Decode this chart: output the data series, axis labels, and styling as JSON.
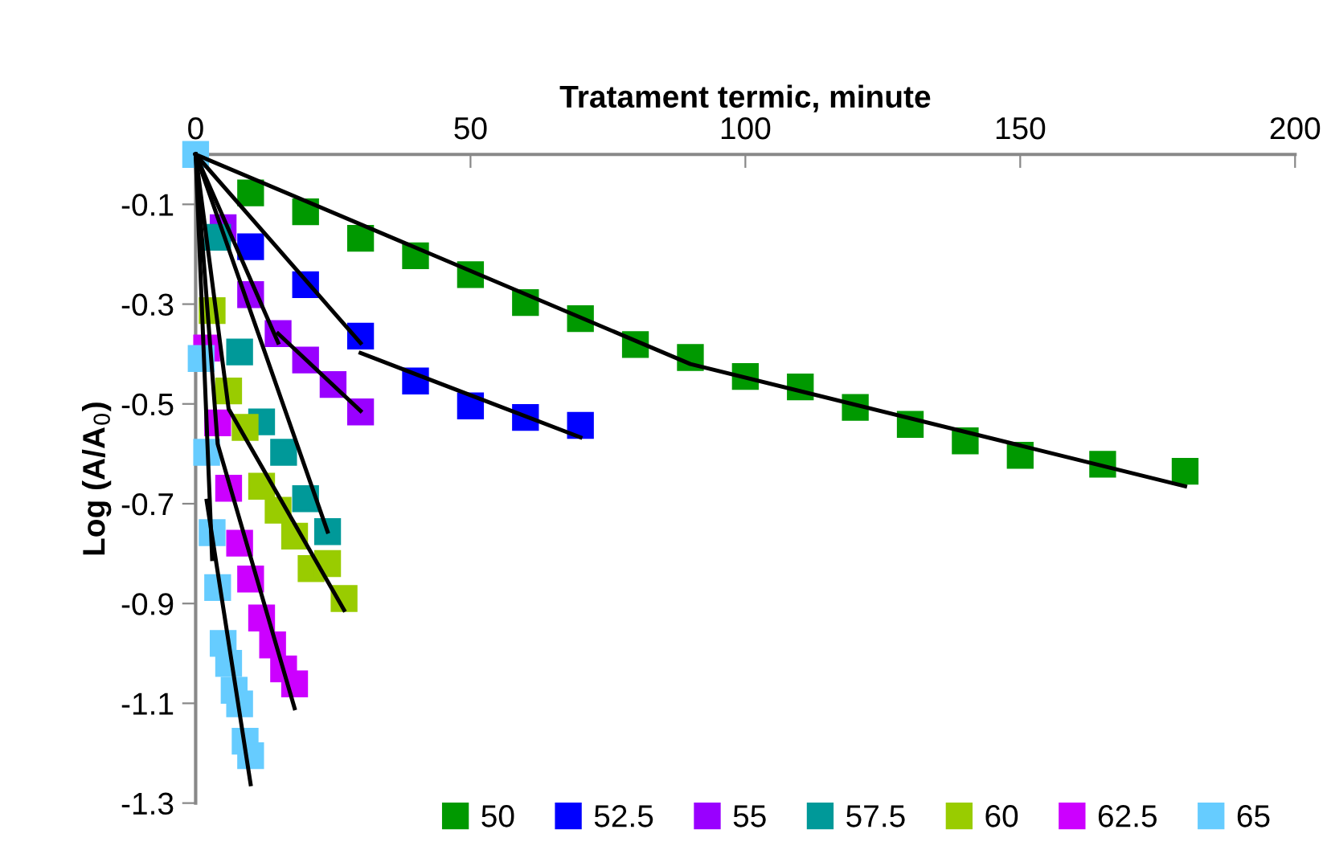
{
  "chart_data": {
    "type": "scatter",
    "xlabel": "Tratament termic, minute",
    "ylabel": "Log (A/A$_{0}$)",
    "xlim": [
      0,
      200
    ],
    "xticks": [
      0,
      50,
      100,
      150,
      200
    ],
    "ylim": [
      -1.3,
      0
    ],
    "yticks": [
      -0.1,
      -0.3,
      -0.5,
      -0.7,
      -0.9,
      -1.1,
      -1.3
    ],
    "grid": false,
    "legend": "bottom",
    "marker": "square",
    "series": [
      {
        "name": "50",
        "color": "#009900",
        "x": [
          10,
          20,
          30,
          40,
          50,
          60,
          70,
          80,
          90,
          100,
          110,
          120,
          130,
          140,
          150,
          165,
          180
        ],
        "values": [
          -0.077,
          -0.115,
          -0.168,
          -0.203,
          -0.241,
          -0.297,
          -0.329,
          -0.381,
          -0.407,
          -0.445,
          -0.466,
          -0.507,
          -0.541,
          -0.574,
          -0.603,
          -0.621,
          -0.635
        ]
      },
      {
        "name": "52.5",
        "color": "#0000ff",
        "x": [
          10,
          20,
          30,
          40,
          50,
          60,
          70
        ],
        "values": [
          -0.185,
          -0.261,
          -0.364,
          -0.454,
          -0.504,
          -0.527,
          -0.543
        ]
      },
      {
        "name": "55",
        "color": "#9900ff",
        "x": [
          5,
          10,
          15,
          20,
          25,
          30
        ],
        "values": [
          -0.147,
          -0.281,
          -0.359,
          -0.412,
          -0.461,
          -0.516
        ]
      },
      {
        "name": "57.5",
        "color": "#009999",
        "x": [
          4,
          8,
          12,
          16,
          20,
          24
        ],
        "values": [
          -0.166,
          -0.396,
          -0.536,
          -0.597,
          -0.69,
          -0.756
        ]
      },
      {
        "name": "60",
        "color": "#99cc00",
        "x": [
          3,
          6,
          9,
          12,
          15,
          18,
          21,
          24,
          27
        ],
        "values": [
          -0.313,
          -0.474,
          -0.547,
          -0.665,
          -0.713,
          -0.765,
          -0.83,
          -0.82,
          -0.89
        ]
      },
      {
        "name": "62.5",
        "color": "#cc00ff",
        "x": [
          2,
          4,
          6,
          8,
          10,
          12,
          14,
          16,
          18
        ],
        "values": [
          -0.388,
          -0.538,
          -0.669,
          -0.779,
          -0.851,
          -0.929,
          -0.983,
          -1.031,
          -1.061
        ]
      },
      {
        "name": "65",
        "color": "#66ccff",
        "x": [
          0,
          1,
          2,
          3,
          4,
          5,
          6,
          7,
          8,
          9,
          10
        ],
        "values": [
          0,
          -0.409,
          -0.597,
          -0.758,
          -0.868,
          -0.98,
          -1.02,
          -1.074,
          -1.101,
          -1.176,
          -1.205
        ]
      },
      {
        "type": "line",
        "color": "#000000",
        "marker": "none",
        "x": [
          0,
          90,
          180
        ],
        "values": [
          0,
          -0.42,
          -0.665
        ]
      },
      {
        "type": "line",
        "color": "#000000",
        "marker": "none",
        "x": [
          0,
          30
        ],
        "values": [
          0,
          -0.378
        ]
      },
      {
        "type": "line",
        "color": "#000000",
        "marker": "none",
        "x": [
          30,
          70
        ],
        "values": [
          -0.398,
          -0.567
        ]
      },
      {
        "type": "line",
        "color": "#000000",
        "marker": "none",
        "x": [
          0,
          15
        ],
        "values": [
          0,
          -0.377
        ]
      },
      {
        "type": "line",
        "color": "#000000",
        "marker": "none",
        "x": [
          15,
          30
        ],
        "values": [
          -0.359,
          -0.514
        ]
      },
      {
        "type": "line",
        "color": "#000000",
        "marker": "none",
        "x": [
          0,
          24
        ],
        "values": [
          0,
          -0.756
        ]
      },
      {
        "type": "line",
        "color": "#000000",
        "marker": "none",
        "x": [
          0,
          6,
          27
        ],
        "values": [
          0,
          -0.51,
          -0.913
        ]
      },
      {
        "type": "line",
        "color": "#000000",
        "marker": "none",
        "x": [
          0,
          4,
          18
        ],
        "values": [
          0,
          -0.58,
          -1.11
        ]
      },
      {
        "type": "line",
        "color": "#000000",
        "marker": "none",
        "x": [
          0,
          3
        ],
        "values": [
          0,
          -0.811
        ]
      },
      {
        "type": "line",
        "color": "#000000",
        "marker": "none",
        "x": [
          2,
          10
        ],
        "values": [
          -0.694,
          -1.262
        ]
      }
    ]
  }
}
